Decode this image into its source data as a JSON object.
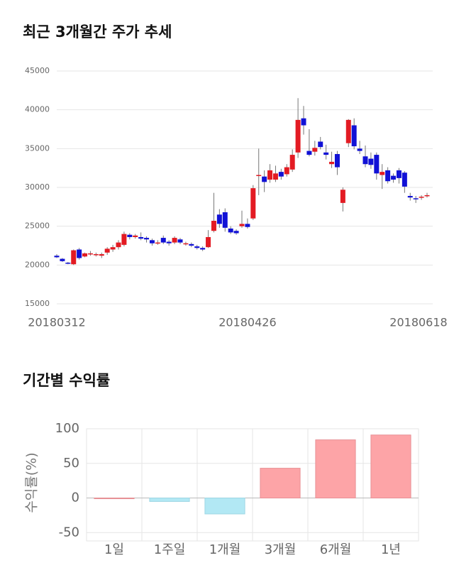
{
  "chart_data": [
    {
      "type": "candlestick",
      "title": "최근 3개월간 주가 추세",
      "categories": [
        "20180312",
        null,
        null,
        null,
        null,
        null,
        null,
        null,
        null,
        null,
        null,
        null,
        null,
        null,
        null,
        null,
        null,
        null,
        null,
        null,
        null,
        null,
        null,
        null,
        null,
        null,
        null,
        null,
        null,
        null,
        null,
        null,
        null,
        null,
        "20180426",
        null,
        null,
        null,
        null,
        null,
        null,
        null,
        null,
        null,
        null,
        null,
        null,
        null,
        null,
        null,
        null,
        null,
        null,
        null,
        null,
        null,
        null,
        null,
        null,
        null,
        null,
        null,
        null,
        null,
        null,
        null,
        "20180618"
      ],
      "open": [
        21200,
        20800,
        20300,
        20100,
        22000,
        21100,
        21400,
        21300,
        21200,
        21600,
        22000,
        22300,
        22600,
        23900,
        23600,
        23600,
        23500,
        23200,
        22900,
        23500,
        23000,
        22900,
        23300,
        22800,
        22700,
        22400,
        22200,
        22300,
        24400,
        26500,
        26800,
        24700,
        24400,
        25000,
        25300,
        26000,
        31500,
        31400,
        31000,
        31000,
        32000,
        31700,
        32300,
        34500,
        38900,
        34700,
        34600,
        35900,
        34500,
        33000,
        34300,
        28000,
        35700,
        38000,
        35000,
        34000,
        33700,
        34200,
        31600,
        32200,
        31500,
        32200,
        31900,
        28900,
        28600,
        28700,
        28900
      ],
      "high": [
        21400,
        20900,
        20400,
        22000,
        22200,
        21600,
        21800,
        21600,
        21600,
        22300,
        22600,
        23200,
        24300,
        24100,
        24000,
        24200,
        23700,
        23400,
        23200,
        23800,
        23200,
        23700,
        23500,
        23000,
        22900,
        22600,
        22400,
        24500,
        29300,
        27200,
        27300,
        25000,
        24600,
        27000,
        26000,
        30300,
        35000,
        32200,
        33000,
        32800,
        32400,
        33000,
        34900,
        41500,
        40500,
        37500,
        36000,
        36500,
        35500,
        34600,
        34700,
        30000,
        38800,
        38900,
        36000,
        35400,
        34500,
        34500,
        33000,
        32600,
        31800,
        32500,
        32100,
        29300,
        28900,
        29000,
        29300
      ],
      "low": [
        20900,
        20400,
        20100,
        20000,
        20700,
        21000,
        21200,
        21100,
        20900,
        21300,
        21700,
        22000,
        22400,
        23300,
        23400,
        23200,
        22900,
        22500,
        22600,
        22700,
        22500,
        22700,
        22700,
        22500,
        22300,
        22000,
        21800,
        22200,
        24200,
        24800,
        24300,
        24000,
        23900,
        24800,
        24700,
        25800,
        29000,
        29400,
        30600,
        30700,
        31000,
        31400,
        32000,
        33800,
        36800,
        34000,
        34100,
        34900,
        33600,
        32500,
        31600,
        26900,
        35200,
        34900,
        34300,
        32600,
        32400,
        31000,
        29800,
        30500,
        30600,
        30500,
        29300,
        28300,
        28000,
        28400,
        28700
      ],
      "close": [
        21000,
        20500,
        20200,
        21900,
        20900,
        21500,
        21500,
        21400,
        21400,
        22100,
        22300,
        22900,
        24000,
        23600,
        23800,
        23400,
        23300,
        22800,
        22900,
        22900,
        22800,
        23500,
        22900,
        22800,
        22500,
        22200,
        22000,
        23600,
        25700,
        25300,
        24800,
        24200,
        24100,
        25300,
        24900,
        29900,
        31600,
        30700,
        32200,
        31800,
        31400,
        32600,
        34200,
        38700,
        38000,
        34200,
        35100,
        35200,
        34200,
        33300,
        32600,
        29700,
        38700,
        35300,
        34700,
        33000,
        32900,
        31800,
        32000,
        30800,
        31000,
        31200,
        30100,
        28700,
        28500,
        28800,
        29000
      ],
      "up_color": "#e31b23",
      "down_color": "#1111d6",
      "ylim": [
        15000,
        45000
      ],
      "yticks": [
        15000,
        20000,
        25000,
        30000,
        35000,
        40000,
        45000
      ],
      "grid": true
    },
    {
      "type": "bar",
      "title": "기간별 수익률",
      "ylabel": "수익률(%)",
      "categories": [
        "1일",
        "1주일",
        "1개월",
        "3개월",
        "6개월",
        "1년"
      ],
      "values": [
        0,
        -5,
        -23,
        43,
        84,
        91
      ],
      "positive_color": "#fda4a7",
      "negative_color": "#b2e8f4",
      "ylim": [
        -62,
        100
      ],
      "yticks": [
        -50,
        0,
        50,
        100
      ],
      "grid": true
    }
  ]
}
